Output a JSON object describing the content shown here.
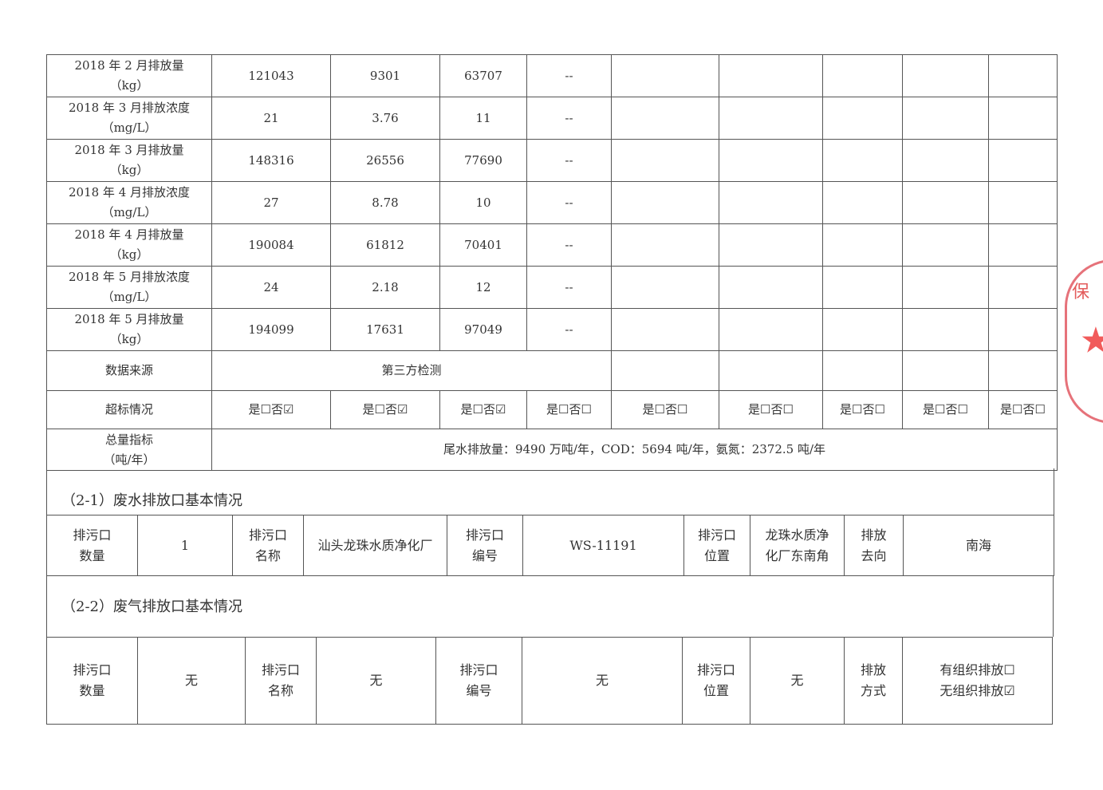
{
  "emissions": {
    "rows": [
      {
        "label": "2018 年 2 月排放量",
        "unit": "（kg）",
        "values": [
          "121043",
          "9301",
          "63707",
          "--"
        ]
      },
      {
        "label": "2018 年 3 月排放浓度",
        "unit": "（mg/L）",
        "values": [
          "21",
          "3.76",
          "11",
          "--"
        ]
      },
      {
        "label": "2018 年 3 月排放量",
        "unit": "（kg）",
        "values": [
          "148316",
          "26556",
          "77690",
          "--"
        ]
      },
      {
        "label": "2018 年 4 月排放浓度",
        "unit": "（mg/L）",
        "values": [
          "27",
          "8.78",
          "10",
          "--"
        ]
      },
      {
        "label": "2018 年 4 月排放量",
        "unit": "（kg）",
        "values": [
          "190084",
          "61812",
          "70401",
          "--"
        ]
      },
      {
        "label": "2018 年 5 月排放浓度",
        "unit": "（mg/L）",
        "values": [
          "24",
          "2.18",
          "12",
          "--"
        ]
      },
      {
        "label": "2018 年 5 月排放量",
        "unit": "（kg）",
        "values": [
          "194099",
          "17631",
          "97049",
          "--"
        ]
      }
    ],
    "data_source": {
      "label": "数据来源",
      "value": "第三方检测"
    },
    "exceed": {
      "label": "超标情况",
      "values": [
        "是☐否☑",
        "是☐否☑",
        "是☐否☑",
        "是☐否☐",
        "是☐否☐",
        "是☐否☐",
        "是☐否☐",
        "是☐否☐",
        "是☐否☐"
      ]
    },
    "total": {
      "label": "总量指标",
      "unit": "（吨/年）",
      "value": "尾水排放量：9490 万吨/年，COD：5694 吨/年，氨氮：2372.5 吨/年"
    }
  },
  "wastewater": {
    "title": "（2-1）废水排放口基本情况",
    "cells": [
      "排污口\n数量",
      "1",
      "排污口\n名称",
      "汕头龙珠水质净化厂",
      "排污口\n编号",
      "WS-11191",
      "排污口\n位置",
      "龙珠水质净\n化厂东南角",
      "排放\n去向",
      "南海"
    ]
  },
  "gas": {
    "title": "（2-2）废气排放口基本情况",
    "cells": [
      "排污口\n数量",
      "无",
      "排污口\n名称",
      "无",
      "排污口\n编号",
      "无",
      "排污口\n位置",
      "无",
      "排放\n方式",
      "有组织排放☐\n无组织排放☑"
    ]
  },
  "stamp": {
    "text": "保",
    "color": "#e0505a"
  }
}
